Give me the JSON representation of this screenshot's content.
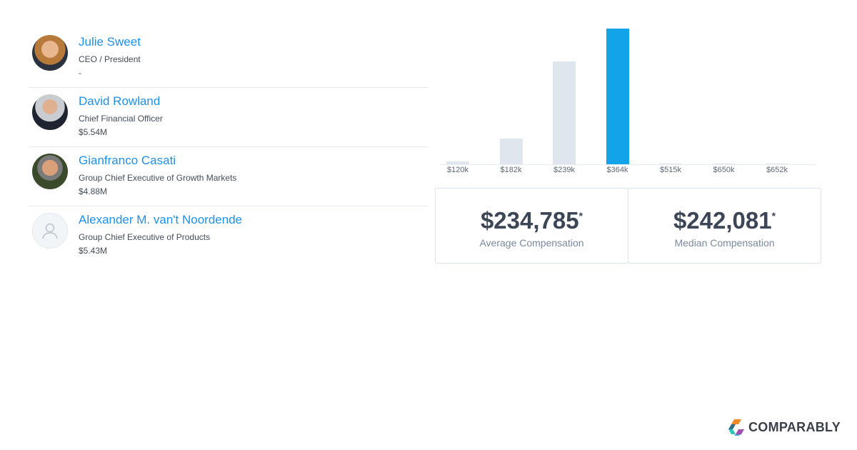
{
  "people": [
    {
      "name": "Julie Sweet",
      "title": "CEO / President",
      "comp": "-"
    },
    {
      "name": "David Rowland",
      "title": "Chief Financial Officer",
      "comp": "$5.54M"
    },
    {
      "name": "Gianfranco Casati",
      "title": "Group Chief Executive of Growth Markets",
      "comp": "$4.88M"
    },
    {
      "name": "Alexander M. van't Noordende",
      "title": "Group Chief Executive of Products",
      "comp": "$5.43M"
    }
  ],
  "chart_data": {
    "type": "bar",
    "categories": [
      "$120k",
      "$182k",
      "$239k",
      "$364k",
      "$515k",
      "$650k",
      "$652k"
    ],
    "values": [
      2,
      19,
      76,
      100,
      0.5,
      0.5,
      0.5
    ],
    "highlight_index": 3,
    "colors": {
      "bar": "#dfe6ed",
      "highlight": "#12a3e8"
    }
  },
  "stats": {
    "average": {
      "value": "$234,785",
      "mark": "*",
      "label": "Average Compensation"
    },
    "median": {
      "value": "$242,081",
      "mark": "*",
      "label": "Median Compensation"
    }
  },
  "brand": {
    "name": "COMPARABLY"
  }
}
